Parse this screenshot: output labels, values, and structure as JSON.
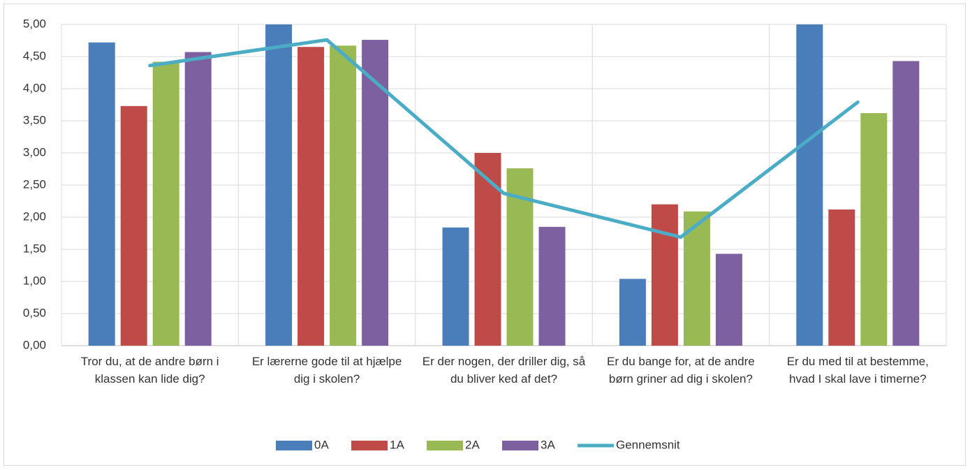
{
  "chart_data": {
    "type": "bar",
    "categories": [
      "Tror du, at de andre børn i klassen kan lide dig?",
      "Er lærerne gode til at hjælpe dig i skolen?",
      "Er der nogen, der driller dig, så du bliver ked af det?",
      "Er du bange for, at de andre børn griner ad dig i skolen?",
      "Er du med til at bestemme, hvad I skal lave i timerne?"
    ],
    "series": [
      {
        "name": "0A",
        "color": "#4a7ebb",
        "values": [
          4.72,
          5.0,
          1.84,
          1.04,
          5.0
        ]
      },
      {
        "name": "1A",
        "color": "#be4b48",
        "values": [
          3.73,
          4.65,
          3.0,
          2.2,
          2.12
        ]
      },
      {
        "name": "2A",
        "color": "#98b954",
        "values": [
          4.42,
          4.67,
          2.76,
          2.09,
          3.62
        ]
      },
      {
        "name": "3A",
        "color": "#7d60a0",
        "values": [
          4.57,
          4.76,
          1.85,
          1.43,
          4.43
        ]
      },
      {
        "name": "Gennemsnit",
        "type": "line",
        "color": "#4bacc6",
        "values": [
          4.36,
          4.76,
          2.37,
          1.69,
          3.79
        ]
      }
    ],
    "ylim": [
      0,
      5
    ],
    "yticks": [
      {
        "value": 0,
        "label": "0,00"
      },
      {
        "value": 0.5,
        "label": "0,50"
      },
      {
        "value": 1,
        "label": "1,00"
      },
      {
        "value": 1.5,
        "label": "1,50"
      },
      {
        "value": 2,
        "label": "2,00"
      },
      {
        "value": 2.5,
        "label": "2,50"
      },
      {
        "value": 3,
        "label": "3,00"
      },
      {
        "value": 3.5,
        "label": "3,50"
      },
      {
        "value": 4,
        "label": "4,00"
      },
      {
        "value": 4.5,
        "label": "4,50"
      },
      {
        "value": 5,
        "label": "5,00"
      }
    ],
    "grid": true,
    "legend": "bottom"
  }
}
